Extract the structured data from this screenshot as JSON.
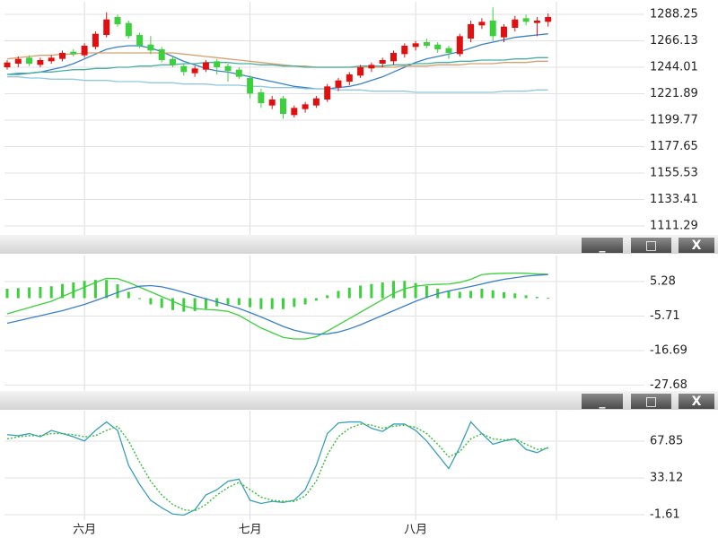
{
  "chart_data": [
    {
      "type": "candlestick",
      "up_color": "#e01010",
      "down_color": "#3cd03c",
      "open": [
        1244,
        1247,
        1252,
        1246,
        1249,
        1251,
        1257,
        1254,
        1261,
        1271,
        1286,
        1281,
        1271,
        1263,
        1259,
        1251,
        1245,
        1239,
        1242,
        1249,
        1245,
        1242,
        1235,
        1223,
        1212,
        1218,
        1204,
        1209,
        1212,
        1217,
        1227,
        1232,
        1237,
        1243,
        1247,
        1249,
        1255,
        1261,
        1265,
        1263,
        1260,
        1255,
        1268,
        1279,
        1283,
        1269,
        1277,
        1285,
        1281,
        1282
      ],
      "high": [
        1250,
        1253,
        1254,
        1252,
        1254,
        1258,
        1259,
        1264,
        1274,
        1290,
        1288,
        1283,
        1273,
        1270,
        1261,
        1253,
        1247,
        1245,
        1250,
        1251,
        1247,
        1244,
        1237,
        1226,
        1220,
        1220,
        1212,
        1215,
        1220,
        1230,
        1235,
        1240,
        1246,
        1248,
        1252,
        1258,
        1264,
        1266,
        1268,
        1265,
        1262,
        1272,
        1283,
        1285,
        1294,
        1280,
        1287,
        1288,
        1286,
        1289
      ],
      "low": [
        1242,
        1244,
        1245,
        1244,
        1247,
        1249,
        1253,
        1252,
        1259,
        1269,
        1278,
        1268,
        1260,
        1255,
        1248,
        1244,
        1237,
        1236,
        1240,
        1238,
        1232,
        1234,
        1218,
        1210,
        1209,
        1201,
        1202,
        1206,
        1210,
        1215,
        1224,
        1229,
        1235,
        1240,
        1244,
        1246,
        1252,
        1258,
        1260,
        1256,
        1251,
        1253,
        1265,
        1276,
        1266,
        1265,
        1274,
        1279,
        1270,
        1278
      ],
      "close": [
        1248,
        1251,
        1247,
        1250,
        1252,
        1256,
        1255,
        1262,
        1272,
        1284,
        1280,
        1270,
        1262,
        1258,
        1250,
        1246,
        1240,
        1243,
        1248,
        1244,
        1241,
        1236,
        1222,
        1214,
        1217,
        1205,
        1210,
        1213,
        1218,
        1228,
        1233,
        1238,
        1244,
        1246,
        1250,
        1256,
        1262,
        1264,
        1262,
        1259,
        1256,
        1270,
        1280,
        1282,
        1270,
        1278,
        1284,
        1282,
        1283,
        1286
      ],
      "series": [
        {
          "color": "#3a80c8",
          "values": [
            1238,
            1238,
            1239,
            1240,
            1242,
            1244,
            1247,
            1251,
            1255,
            1259,
            1261,
            1262,
            1262,
            1260,
            1257,
            1253,
            1249,
            1246,
            1243,
            1241,
            1240,
            1238,
            1236,
            1234,
            1232,
            1230,
            1228,
            1227,
            1226,
            1226,
            1227,
            1228,
            1230,
            1233,
            1236,
            1240,
            1244,
            1248,
            1251,
            1253,
            1255,
            1257,
            1260,
            1263,
            1265,
            1267,
            1269,
            1270,
            1271,
            1272
          ]
        },
        {
          "color": "#d8a070",
          "values": [
            1251,
            1252,
            1253,
            1254,
            1254,
            1255,
            1255,
            1256,
            1256,
            1256,
            1256,
            1256,
            1256,
            1256,
            1256,
            1256,
            1255,
            1254,
            1253,
            1252,
            1251,
            1250,
            1249,
            1248,
            1247,
            1246,
            1245,
            1245,
            1244,
            1244,
            1244,
            1244,
            1244,
            1244,
            1244,
            1244,
            1245,
            1245,
            1245,
            1246,
            1246,
            1246,
            1247,
            1247,
            1247,
            1248,
            1248,
            1248,
            1249,
            1249
          ]
        },
        {
          "color": "#48b0a0",
          "values": [
            1238,
            1239,
            1239,
            1240,
            1240,
            1241,
            1242,
            1242,
            1243,
            1243,
            1244,
            1244,
            1245,
            1245,
            1246,
            1246,
            1247,
            1247,
            1248,
            1248,
            1248,
            1247,
            1247,
            1246,
            1246,
            1245,
            1245,
            1244,
            1244,
            1244,
            1244,
            1244,
            1245,
            1245,
            1245,
            1246,
            1246,
            1247,
            1247,
            1248,
            1248,
            1249,
            1249,
            1250,
            1250,
            1250,
            1251,
            1251,
            1252,
            1252
          ]
        },
        {
          "color": "#90c8e0",
          "values": [
            1236,
            1236,
            1235,
            1235,
            1234,
            1234,
            1234,
            1233,
            1233,
            1233,
            1232,
            1232,
            1232,
            1231,
            1231,
            1231,
            1230,
            1230,
            1230,
            1229,
            1229,
            1229,
            1228,
            1228,
            1227,
            1227,
            1227,
            1226,
            1226,
            1226,
            1225,
            1225,
            1225,
            1224,
            1224,
            1224,
            1224,
            1223,
            1223,
            1223,
            1223,
            1223,
            1223,
            1223,
            1223,
            1224,
            1224,
            1224,
            1225,
            1225
          ]
        }
      ],
      "ylim": [
        1103.75,
        1298.75
      ],
      "yticks": [
        1288.25,
        1266.13,
        1244.01,
        1221.89,
        1199.77,
        1177.65,
        1155.53,
        1133.41,
        1111.29
      ],
      "grid": true
    },
    {
      "type": "macd",
      "series": [
        {
          "style": "bar",
          "color": "#3cd03c",
          "values": [
            3,
            3.2,
            3.4,
            3.6,
            3.8,
            4.5,
            5,
            5.5,
            5.8,
            5.8,
            4.4,
            2,
            -0.3,
            -2,
            -3.1,
            -3.8,
            -4.3,
            -4.1,
            -3.4,
            -2.6,
            -2,
            -2.2,
            -2.9,
            -3.5,
            -3.5,
            -3.5,
            -2.8,
            -2,
            -0.8,
            0.9,
            2.3,
            3.3,
            4,
            4.5,
            5,
            5.5,
            5.5,
            4.8,
            3.9,
            3,
            2.2,
            2,
            2.3,
            3,
            2.5,
            1.9,
            1.5,
            0.9,
            0.4,
            0.1
          ]
        },
        {
          "style": "line",
          "color": "#3cd03c",
          "values": [
            -5,
            -4,
            -3,
            -2,
            -1,
            0.5,
            2,
            3.5,
            5,
            6.3,
            6.2,
            5,
            3.5,
            2,
            0.5,
            -1,
            -2.5,
            -3.3,
            -3.6,
            -3.8,
            -4.2,
            -5.5,
            -7.5,
            -9.5,
            -11,
            -12.5,
            -13,
            -13,
            -12.3,
            -10.5,
            -8.5,
            -6.5,
            -4.5,
            -2.5,
            -0.5,
            1.5,
            3,
            3.8,
            4.2,
            4.4,
            4.5,
            5,
            6,
            7.5,
            7.8,
            7.9,
            8,
            7.9,
            7.7,
            7.6
          ]
        },
        {
          "style": "line",
          "color": "#3a80c8",
          "values": [
            -8,
            -7.2,
            -6.4,
            -5.6,
            -4.8,
            -4,
            -3,
            -2,
            -0.8,
            0.5,
            1.8,
            3,
            3.8,
            4,
            3.6,
            2.8,
            1.8,
            0.8,
            -0.2,
            -1.2,
            -2.2,
            -3.3,
            -4.6,
            -6,
            -7.5,
            -9,
            -10.2,
            -11,
            -11.5,
            -11.4,
            -10.8,
            -9.8,
            -8.5,
            -7,
            -5.5,
            -4,
            -2.5,
            -1,
            0.3,
            1.4,
            2.3,
            3,
            3.7,
            4.5,
            5.3,
            6,
            6.5,
            7,
            7.3,
            7.5
          ]
        }
      ],
      "ylim": [
        -29.84,
        13.56
      ],
      "yticks": [
        5.28,
        -5.71,
        -16.69,
        -27.68
      ],
      "grid": true
    },
    {
      "type": "line",
      "categories": [
        null,
        null,
        null,
        null,
        null,
        null,
        null,
        "六月",
        null,
        null,
        null,
        null,
        null,
        null,
        null,
        null,
        null,
        null,
        null,
        null,
        null,
        null,
        "七月",
        null,
        null,
        null,
        null,
        null,
        null,
        null,
        null,
        null,
        null,
        null,
        null,
        null,
        null,
        "八月",
        null,
        null,
        null,
        null,
        null,
        null,
        null,
        null,
        null,
        null,
        null,
        null
      ],
      "series": [
        {
          "style": "line",
          "color": "#3aa0b8",
          "values": [
            74,
            73,
            75,
            72,
            78,
            75,
            72,
            68,
            78,
            86,
            78,
            45,
            27,
            12,
            5,
            -1,
            -2,
            3,
            17,
            22,
            30,
            32,
            12,
            9,
            11,
            10,
            12,
            22,
            45,
            75,
            85,
            86,
            86,
            80,
            77,
            84,
            84,
            78,
            68,
            55,
            42,
            62,
            86,
            75,
            65,
            68,
            70,
            60,
            57,
            62
          ]
        },
        {
          "style": "dotted",
          "color": "#40c040",
          "values": [
            70,
            72,
            73,
            73,
            75,
            75,
            74,
            72,
            73,
            78,
            82,
            68,
            48,
            30,
            17,
            8,
            3,
            2,
            8,
            17,
            24,
            29,
            22,
            15,
            12,
            11,
            11,
            16,
            30,
            55,
            72,
            80,
            84,
            83,
            80,
            82,
            83,
            81,
            75,
            65,
            53,
            58,
            70,
            75,
            70,
            69,
            70,
            65,
            60,
            61
          ]
        }
      ],
      "ylim": [
        -6.69,
        96.65
      ],
      "yticks": [
        67.85,
        33.12,
        -1.61
      ],
      "grid": true
    }
  ],
  "window_controls": [
    "_",
    "□",
    "X"
  ]
}
